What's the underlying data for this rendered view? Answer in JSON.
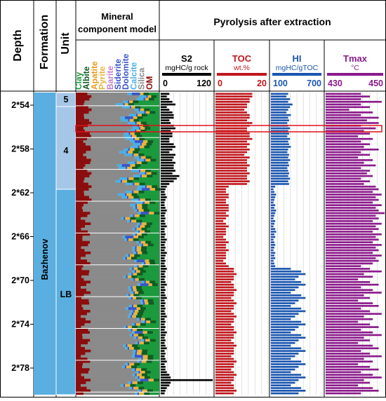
{
  "headers": {
    "depth": "Depth",
    "formation": "Formation",
    "unit": "Unit",
    "mineral_title_1": "Mineral",
    "mineral_title_2": "component model",
    "pyrolysis_title": "Pyrolysis after extraction"
  },
  "minerals": [
    {
      "name": "Clay",
      "color": "#1a9a3c"
    },
    {
      "name": "Albite",
      "color": "#0f5c24"
    },
    {
      "name": "Apatite",
      "color": "#e89a1e"
    },
    {
      "name": "Pyrite",
      "color": "#e8b43a"
    },
    {
      "name": "Barite",
      "color": "#c07fd0"
    },
    {
      "name": "Siderite",
      "color": "#3a56c8"
    },
    {
      "name": "Dolomite",
      "color": "#3a56c8"
    },
    {
      "name": "Calcite",
      "color": "#4ab0e6"
    },
    {
      "name": "Silica",
      "color": "#8a8a8a"
    },
    {
      "name": "OM",
      "color": "#8b0d0d"
    }
  ],
  "tracks": [
    {
      "key": "s2",
      "title": "S2",
      "unit": "mgHC/g rock",
      "min_label": "0",
      "max_label": "120",
      "min": 0,
      "max": 120,
      "color": "#000000"
    },
    {
      "key": "toc",
      "title": "TOC",
      "unit": "wt.%",
      "min_label": "0",
      "max_label": "20",
      "min": 0,
      "max": 20,
      "color": "#c0161c"
    },
    {
      "key": "hi",
      "title": "HI",
      "unit": "mgHC/gTOC",
      "min_label": "100",
      "max_label": "700",
      "min": 100,
      "max": 700,
      "color": "#1a56b0"
    },
    {
      "key": "tmax",
      "title": "Tmax",
      "unit": "°C",
      "min_label": "430",
      "max_label": "450",
      "min": 430,
      "max": 450,
      "color": "#8b1a8b"
    }
  ],
  "depth_ticks": [
    "2*54",
    "2*58",
    "2*62",
    "2*66",
    "2*70",
    "2*74",
    "2*78"
  ],
  "formation": {
    "name": "Bazhenov"
  },
  "units": [
    {
      "name": "5",
      "color": "#a6c6e8"
    },
    {
      "name": "4",
      "color": "#a6c6e8"
    },
    {
      "name": "LB",
      "color": "#5aaee0"
    }
  ],
  "chart_data": {
    "type": "bar",
    "orientation": "horizontal-log",
    "depth_labels": [
      "2*54",
      "2*58",
      "2*62",
      "2*66",
      "2*70",
      "2*74",
      "2*78"
    ],
    "series": [
      {
        "name": "S2",
        "values": [
          20,
          14,
          20,
          27,
          34,
          14,
          20,
          27,
          30,
          30,
          20,
          23,
          30,
          34,
          23,
          27,
          27,
          20,
          20,
          30,
          34,
          27,
          20,
          34,
          30,
          27,
          34,
          30,
          30,
          34,
          27,
          43,
          37,
          30,
          20,
          14,
          11,
          9,
          11,
          14,
          11,
          9,
          9,
          11,
          14,
          11,
          9,
          11,
          9,
          11,
          14,
          9,
          9,
          11,
          9,
          14,
          11,
          9,
          11,
          9,
          14,
          11,
          9,
          11,
          9,
          11,
          14,
          11,
          9,
          11,
          9,
          11,
          14,
          9,
          11,
          9,
          11,
          14,
          9,
          11,
          9,
          11,
          9,
          11,
          14,
          9,
          11,
          9,
          11,
          9,
          14,
          11,
          9,
          11,
          9,
          11,
          14,
          9,
          11,
          9,
          11,
          14,
          9,
          11,
          11,
          14,
          20,
          23,
          120,
          23,
          20,
          14,
          11,
          9
        ]
      },
      {
        "name": "TOC",
        "values": [
          14,
          14,
          13,
          13,
          12,
          12,
          11,
          12,
          13,
          13,
          12,
          14,
          13,
          12,
          12,
          13,
          13,
          14,
          12,
          13,
          12,
          13,
          12,
          11,
          13,
          12,
          12,
          13,
          12,
          12,
          13,
          12,
          12,
          13,
          12,
          5,
          4,
          4,
          5,
          5,
          4,
          4,
          5,
          5,
          5,
          4,
          5,
          4,
          3,
          4,
          5,
          4,
          4,
          4,
          3,
          4,
          5,
          4,
          4,
          5,
          4,
          4,
          4,
          3,
          4,
          5,
          7,
          7,
          8,
          7,
          7,
          6,
          7,
          7,
          8,
          7,
          7,
          6,
          7,
          8,
          7,
          7,
          6,
          7,
          8,
          7,
          7,
          6,
          7,
          7,
          8,
          7,
          7,
          6,
          7,
          8,
          7,
          7,
          7,
          6,
          7,
          8,
          7,
          7,
          6,
          7,
          8,
          7,
          7,
          6,
          7,
          7,
          8,
          7
        ]
      },
      {
        "name": "HI",
        "values": [
          300,
          280,
          320,
          300,
          350,
          320,
          300,
          280,
          330,
          300,
          310,
          290,
          300,
          320,
          300,
          310,
          290,
          320,
          300,
          310,
          330,
          300,
          290,
          310,
          300,
          320,
          300,
          310,
          290,
          300,
          310,
          300,
          320,
          300,
          310,
          150,
          130,
          140,
          160,
          150,
          140,
          130,
          150,
          140,
          160,
          150,
          140,
          130,
          150,
          140,
          130,
          150,
          160,
          140,
          150,
          130,
          140,
          150,
          140,
          130,
          150,
          140,
          150,
          130,
          140,
          150,
          330,
          450,
          500,
          420,
          380,
          450,
          500,
          420,
          380,
          330,
          450,
          500,
          420,
          380,
          330,
          450,
          500,
          420,
          380,
          330,
          450,
          500,
          420,
          380,
          330,
          450,
          500,
          420,
          380,
          330,
          450,
          500,
          420,
          380,
          330,
          450,
          500,
          420,
          380,
          330,
          450,
          500,
          420,
          380,
          330,
          450,
          500,
          420
        ]
      },
      {
        "name": "Tmax",
        "values": [
          442,
          445,
          442,
          449,
          442,
          445,
          438,
          446,
          442,
          448,
          444,
          448,
          442,
          447,
          443,
          445,
          441,
          446,
          442,
          445,
          443,
          448,
          442,
          445,
          441,
          446,
          443,
          447,
          442,
          445,
          444,
          446,
          442,
          445,
          443,
          447,
          448,
          446,
          449,
          447,
          448,
          446,
          449,
          447,
          448,
          450,
          447,
          448,
          446,
          449,
          447,
          448,
          446,
          449,
          447,
          448,
          446,
          449,
          447,
          448,
          446,
          449,
          447,
          448,
          446,
          442,
          445,
          449,
          443,
          446,
          441,
          445,
          448,
          442,
          446,
          449,
          443,
          445,
          441,
          446,
          448,
          442,
          445,
          449,
          443,
          446,
          441,
          445,
          448,
          442,
          446,
          449,
          443,
          445,
          441,
          446,
          448,
          442,
          445,
          449,
          443,
          446,
          441,
          445,
          448,
          442,
          446,
          449,
          443,
          445,
          441,
          446,
          448,
          442
        ]
      }
    ],
    "highlight_band": "red outlined depth interval within Unit 4"
  }
}
